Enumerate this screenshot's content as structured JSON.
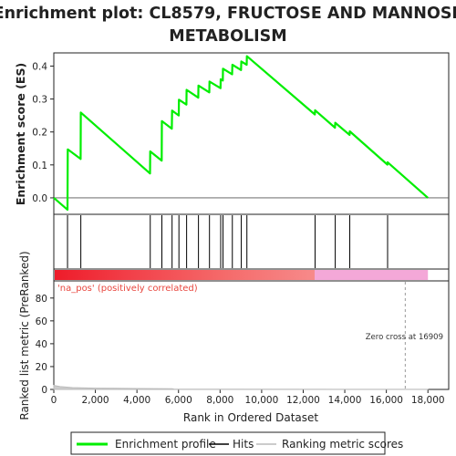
{
  "title_line1": "Enrichment plot: CL8579, FRUCTOSE AND MANNOSE",
  "title_line2": "METABOLISM",
  "colors": {
    "profile": "#00ee00",
    "hits": "#000000",
    "pos_label": "#e8473f",
    "neg_band": "#f4a8d8",
    "ranking": "#bbbbbb"
  },
  "chart_data": [
    {
      "type": "line",
      "panel": "enrichment",
      "ylabel": "Enrichment score (ES)",
      "ylim": [
        -0.05,
        0.44
      ],
      "yticks": [
        0.0,
        0.1,
        0.2,
        0.3,
        0.4
      ],
      "ytick_labels": [
        "0.0",
        "0.1",
        "0.2",
        "0.3",
        "0.4"
      ],
      "grid": false,
      "series": [
        {
          "name": "Enrichment profile",
          "points": [
            [
              0,
              0.0
            ],
            [
              660,
              -0.036
            ],
            [
              670,
              0.147
            ],
            [
              1290,
              0.118
            ],
            [
              1300,
              0.259
            ],
            [
              4630,
              0.074
            ],
            [
              4640,
              0.141
            ],
            [
              5190,
              0.113
            ],
            [
              5200,
              0.233
            ],
            [
              5680,
              0.21
            ],
            [
              5690,
              0.265
            ],
            [
              6010,
              0.25
            ],
            [
              6020,
              0.298
            ],
            [
              6380,
              0.283
            ],
            [
              6390,
              0.328
            ],
            [
              6950,
              0.304
            ],
            [
              6960,
              0.341
            ],
            [
              7480,
              0.32
            ],
            [
              7490,
              0.353
            ],
            [
              8020,
              0.333
            ],
            [
              8030,
              0.36
            ],
            [
              8130,
              0.356
            ],
            [
              8140,
              0.392
            ],
            [
              8580,
              0.375
            ],
            [
              8590,
              0.404
            ],
            [
              9010,
              0.388
            ],
            [
              9020,
              0.414
            ],
            [
              9280,
              0.404
            ],
            [
              9290,
              0.43
            ],
            [
              12560,
              0.253
            ],
            [
              12570,
              0.266
            ],
            [
              13530,
              0.213
            ],
            [
              13540,
              0.228
            ],
            [
              14230,
              0.191
            ],
            [
              14240,
              0.202
            ],
            [
              16050,
              0.101
            ],
            [
              16060,
              0.108
            ],
            [
              18000,
              0.0
            ]
          ]
        }
      ]
    },
    {
      "type": "scatter",
      "panel": "hits",
      "series": [
        {
          "name": "Hits",
          "x": [
            660,
            1300,
            4640,
            5200,
            5690,
            6020,
            6390,
            6960,
            7490,
            8030,
            8140,
            8590,
            9020,
            9290,
            12570,
            13540,
            14240,
            16060
          ]
        }
      ]
    },
    {
      "type": "area",
      "panel": "ranking",
      "xlabel": "Rank in Ordered Dataset",
      "ylabel": "Ranked list metric (PreRanked)",
      "xlim": [
        0,
        19000
      ],
      "ylim": [
        0,
        95
      ],
      "xticks": [
        0,
        2000,
        4000,
        6000,
        8000,
        10000,
        12000,
        14000,
        16000,
        18000
      ],
      "xtick_labels": [
        "0",
        "2,000",
        "4,000",
        "6,000",
        "8,000",
        "10,000",
        "12,000",
        "14,000",
        "16,000",
        "18,000"
      ],
      "yticks": [
        0,
        20,
        40,
        60,
        80
      ],
      "ytick_labels": [
        "0",
        "20",
        "40",
        "60",
        "80"
      ],
      "series": [
        {
          "name": "Ranking metric scores",
          "points": [
            [
              0,
              3.5
            ],
            [
              300,
              2.5
            ],
            [
              900,
              1.6
            ],
            [
              2000,
              1.1
            ],
            [
              4000,
              0.8
            ],
            [
              5700,
              0.6
            ],
            [
              5800,
              0.2
            ],
            [
              18000,
              0.05
            ]
          ]
        }
      ],
      "pos_label": "'na_pos' (positively correlated)",
      "zero_cross_label": "Zero cross at 16909",
      "zero_cross": 16909
    }
  ],
  "legend": {
    "items": [
      {
        "label": "Enrichment profile",
        "color": "#00ee00"
      },
      {
        "label": "Hits",
        "color": "#000000"
      },
      {
        "label": "Ranking metric scores",
        "color": "#bbbbbb"
      }
    ]
  }
}
